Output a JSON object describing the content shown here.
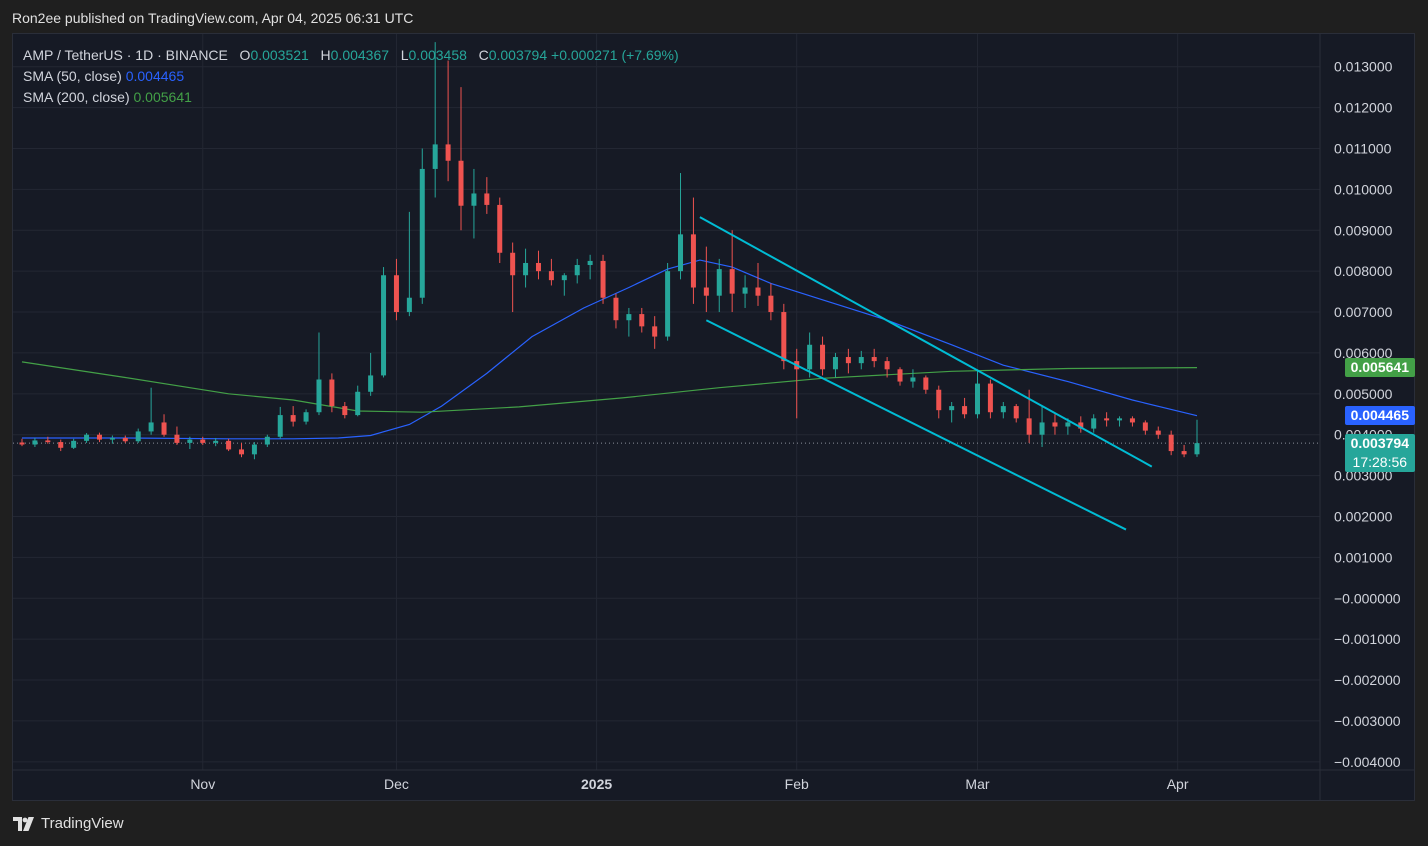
{
  "header": {
    "published": "Ron2ee published on TradingView.com, Apr 04, 2025 06:31 UTC"
  },
  "legend": {
    "symbol": "AMP / TetherUS · 1D · BINANCE",
    "o_label": "O",
    "o": "0.003521",
    "h_label": "H",
    "h": "0.004367",
    "l_label": "L",
    "l": "0.003458",
    "c_label": "C",
    "c": "0.003794",
    "change": "+0.000271 (+7.69%)",
    "sma50_label": "SMA (50, close)",
    "sma50": "0.004465",
    "sma200_label": "SMA (200, close)",
    "sma200": "0.005641"
  },
  "tags": {
    "sma200": "0.005641",
    "sma50": "0.004465",
    "price": "0.003794",
    "countdown": "17:28:56"
  },
  "colors": {
    "up": "#26a69a",
    "down": "#ef5350",
    "sma50": "#2962ff",
    "sma200": "#43a047",
    "trendline": "#00bcd4",
    "background": "#161a25",
    "grid": "#232733"
  },
  "footer": {
    "brand": "TradingView",
    "logo_icon": "tradingview-logo-icon"
  },
  "chart_data": {
    "type": "candlestick",
    "title": "AMP / TetherUS · 1D · BINANCE",
    "ylim": [
      -0.0042,
      0.0138
    ],
    "y_ticks": [
      "0.013000",
      "0.012000",
      "0.011000",
      "0.010000",
      "0.009000",
      "0.008000",
      "0.007000",
      "0.006000",
      "0.005000",
      "0.004000",
      "0.003000",
      "0.002000",
      "0.001000",
      "−0.000000",
      "−0.001000",
      "−0.002000",
      "−0.003000",
      "−0.004000"
    ],
    "x_ticks": [
      {
        "label": "Nov",
        "date": "2024-11-01"
      },
      {
        "label": "Dec",
        "date": "2024-12-01"
      },
      {
        "label": "2025",
        "date": "2025-01-01",
        "bold": true
      },
      {
        "label": "Feb",
        "date": "2025-02-01"
      },
      {
        "label": "Mar",
        "date": "2025-03-01"
      },
      {
        "label": "Apr",
        "date": "2025-04-01"
      }
    ],
    "x_start": "2024-10-04",
    "x_end": "2025-04-04",
    "series": [
      {
        "name": "SMA (50, close)",
        "color": "#2962ff",
        "points": [
          [
            "2024-10-04",
            0.00392
          ],
          [
            "2024-10-20",
            0.00392
          ],
          [
            "2024-11-05",
            0.0039
          ],
          [
            "2024-11-15",
            0.0039
          ],
          [
            "2024-11-22",
            0.00392
          ],
          [
            "2024-11-27",
            0.00398
          ],
          [
            "2024-12-03",
            0.00425
          ],
          [
            "2024-12-08",
            0.0047
          ],
          [
            "2024-12-15",
            0.0055
          ],
          [
            "2024-12-22",
            0.0064
          ],
          [
            "2024-12-30",
            0.0071
          ],
          [
            "2025-01-06",
            0.0076
          ],
          [
            "2025-01-12",
            0.00805
          ],
          [
            "2025-01-17",
            0.00827
          ],
          [
            "2025-01-22",
            0.0081
          ],
          [
            "2025-01-28",
            0.0077
          ],
          [
            "2025-02-05",
            0.0073
          ],
          [
            "2025-02-15",
            0.0068
          ],
          [
            "2025-02-25",
            0.0062
          ],
          [
            "2025-03-05",
            0.0057
          ],
          [
            "2025-03-15",
            0.0053
          ],
          [
            "2025-03-25",
            0.00485
          ],
          [
            "2025-04-04",
            0.004465
          ]
        ]
      },
      {
        "name": "SMA (200, close)",
        "color": "#43a047",
        "points": [
          [
            "2024-10-04",
            0.00578
          ],
          [
            "2024-10-20",
            0.0054
          ],
          [
            "2024-11-05",
            0.005
          ],
          [
            "2024-11-15",
            0.00485
          ],
          [
            "2024-11-25",
            0.00458
          ],
          [
            "2024-12-05",
            0.00455
          ],
          [
            "2024-12-20",
            0.00468
          ],
          [
            "2025-01-05",
            0.0049
          ],
          [
            "2025-01-20",
            0.00515
          ],
          [
            "2025-02-05",
            0.00538
          ],
          [
            "2025-02-25",
            0.00555
          ],
          [
            "2025-03-15",
            0.00562
          ],
          [
            "2025-04-04",
            0.005641
          ]
        ]
      }
    ],
    "candles": [
      [
        "2024-10-04",
        0.00381,
        0.0039,
        0.00372,
        0.00376
      ],
      [
        "2024-10-06",
        0.00376,
        0.00392,
        0.0037,
        0.00386
      ],
      [
        "2024-10-08",
        0.00386,
        0.00395,
        0.00378,
        0.00382
      ],
      [
        "2024-10-10",
        0.00382,
        0.00388,
        0.0036,
        0.00368
      ],
      [
        "2024-10-12",
        0.00368,
        0.0039,
        0.00365,
        0.00385
      ],
      [
        "2024-10-14",
        0.00385,
        0.00404,
        0.0038,
        0.004
      ],
      [
        "2024-10-16",
        0.004,
        0.00405,
        0.00382,
        0.00388
      ],
      [
        "2024-10-18",
        0.00388,
        0.00398,
        0.00378,
        0.00392
      ],
      [
        "2024-10-20",
        0.00392,
        0.00398,
        0.0038,
        0.00384
      ],
      [
        "2024-10-22",
        0.00384,
        0.00415,
        0.0038,
        0.00408
      ],
      [
        "2024-10-24",
        0.00408,
        0.00515,
        0.004,
        0.0043
      ],
      [
        "2024-10-26",
        0.0043,
        0.0045,
        0.00395,
        0.004
      ],
      [
        "2024-10-28",
        0.004,
        0.0042,
        0.00375,
        0.0038
      ],
      [
        "2024-10-30",
        0.0038,
        0.00395,
        0.00365,
        0.00388
      ],
      [
        "2024-11-01",
        0.00388,
        0.00395,
        0.00375,
        0.0038
      ],
      [
        "2024-11-03",
        0.0038,
        0.00392,
        0.00372,
        0.00385
      ],
      [
        "2024-11-05",
        0.00385,
        0.0039,
        0.0036,
        0.00364
      ],
      [
        "2024-11-07",
        0.00364,
        0.0038,
        0.00345,
        0.00352
      ],
      [
        "2024-11-09",
        0.00352,
        0.00382,
        0.0034,
        0.00376
      ],
      [
        "2024-11-11",
        0.00376,
        0.004,
        0.0037,
        0.00395
      ],
      [
        "2024-11-13",
        0.00395,
        0.00468,
        0.0039,
        0.00448
      ],
      [
        "2024-11-15",
        0.00448,
        0.0047,
        0.0042,
        0.00432
      ],
      [
        "2024-11-17",
        0.00432,
        0.00462,
        0.00425,
        0.00455
      ],
      [
        "2024-11-19",
        0.00455,
        0.0065,
        0.00448,
        0.00535
      ],
      [
        "2024-11-21",
        0.00535,
        0.0055,
        0.00455,
        0.0047
      ],
      [
        "2024-11-23",
        0.0047,
        0.0048,
        0.0044,
        0.00448
      ],
      [
        "2024-11-25",
        0.00448,
        0.0052,
        0.00445,
        0.00505
      ],
      [
        "2024-11-27",
        0.00505,
        0.006,
        0.00495,
        0.00545
      ],
      [
        "2024-11-29",
        0.00545,
        0.0081,
        0.0054,
        0.0079
      ],
      [
        "2024-12-01",
        0.0079,
        0.0083,
        0.0068,
        0.007
      ],
      [
        "2024-12-03",
        0.007,
        0.00945,
        0.0069,
        0.00735
      ],
      [
        "2024-12-05",
        0.00735,
        0.011,
        0.0072,
        0.0105
      ],
      [
        "2024-12-07",
        0.0105,
        0.0136,
        0.0098,
        0.0111
      ],
      [
        "2024-12-09",
        0.0111,
        0.01315,
        0.0102,
        0.0107
      ],
      [
        "2024-12-11",
        0.0107,
        0.0125,
        0.009,
        0.0096
      ],
      [
        "2024-12-13",
        0.0096,
        0.0105,
        0.0088,
        0.0099
      ],
      [
        "2024-12-15",
        0.0099,
        0.0103,
        0.0094,
        0.00962
      ],
      [
        "2024-12-17",
        0.00962,
        0.0098,
        0.0082,
        0.00845
      ],
      [
        "2024-12-19",
        0.00845,
        0.0087,
        0.007,
        0.0079
      ],
      [
        "2024-12-21",
        0.0079,
        0.00855,
        0.0076,
        0.0082
      ],
      [
        "2024-12-23",
        0.0082,
        0.0085,
        0.0078,
        0.008
      ],
      [
        "2024-12-25",
        0.008,
        0.0083,
        0.00765,
        0.00778
      ],
      [
        "2024-12-27",
        0.00778,
        0.00795,
        0.0074,
        0.0079
      ],
      [
        "2024-12-29",
        0.0079,
        0.0083,
        0.0077,
        0.00815
      ],
      [
        "2024-12-31",
        0.00815,
        0.0084,
        0.0078,
        0.00825
      ],
      [
        "2025-01-02",
        0.00825,
        0.0084,
        0.0072,
        0.00735
      ],
      [
        "2025-01-04",
        0.00735,
        0.00745,
        0.0066,
        0.0068
      ],
      [
        "2025-01-06",
        0.0068,
        0.0071,
        0.0064,
        0.00695
      ],
      [
        "2025-01-08",
        0.00695,
        0.0071,
        0.0065,
        0.00665
      ],
      [
        "2025-01-10",
        0.00665,
        0.0069,
        0.0061,
        0.0064
      ],
      [
        "2025-01-12",
        0.0064,
        0.0082,
        0.0063,
        0.008
      ],
      [
        "2025-01-14",
        0.008,
        0.0104,
        0.0078,
        0.0089
      ],
      [
        "2025-01-16",
        0.0089,
        0.0098,
        0.0072,
        0.0076
      ],
      [
        "2025-01-18",
        0.0076,
        0.0086,
        0.007,
        0.0074
      ],
      [
        "2025-01-20",
        0.0074,
        0.0083,
        0.007,
        0.00805
      ],
      [
        "2025-01-22",
        0.00805,
        0.009,
        0.007,
        0.00745
      ],
      [
        "2025-01-24",
        0.00745,
        0.0079,
        0.0071,
        0.0076
      ],
      [
        "2025-01-26",
        0.0076,
        0.0082,
        0.00715,
        0.0074
      ],
      [
        "2025-01-28",
        0.0074,
        0.0077,
        0.0068,
        0.007
      ],
      [
        "2025-01-30",
        0.007,
        0.0072,
        0.0056,
        0.0058
      ],
      [
        "2025-02-01",
        0.0058,
        0.0061,
        0.0044,
        0.0056
      ],
      [
        "2025-02-03",
        0.0056,
        0.0065,
        0.0054,
        0.0062
      ],
      [
        "2025-02-05",
        0.0062,
        0.0064,
        0.00545,
        0.0056
      ],
      [
        "2025-02-07",
        0.0056,
        0.006,
        0.0054,
        0.0059
      ],
      [
        "2025-02-09",
        0.0059,
        0.0061,
        0.0055,
        0.00575
      ],
      [
        "2025-02-11",
        0.00575,
        0.00605,
        0.0056,
        0.0059
      ],
      [
        "2025-02-13",
        0.0059,
        0.0061,
        0.00565,
        0.0058
      ],
      [
        "2025-02-15",
        0.0058,
        0.0059,
        0.0054,
        0.0056
      ],
      [
        "2025-02-17",
        0.0056,
        0.00565,
        0.0052,
        0.0053
      ],
      [
        "2025-02-19",
        0.0053,
        0.0056,
        0.00515,
        0.0054
      ],
      [
        "2025-02-21",
        0.0054,
        0.00545,
        0.005,
        0.0051
      ],
      [
        "2025-02-23",
        0.0051,
        0.0052,
        0.0044,
        0.0046
      ],
      [
        "2025-02-25",
        0.0046,
        0.0048,
        0.0043,
        0.0047
      ],
      [
        "2025-02-27",
        0.0047,
        0.0049,
        0.0044,
        0.0045
      ],
      [
        "2025-03-01",
        0.0045,
        0.0056,
        0.0044,
        0.00525
      ],
      [
        "2025-03-03",
        0.00525,
        0.00535,
        0.0044,
        0.00455
      ],
      [
        "2025-03-05",
        0.00455,
        0.0048,
        0.0044,
        0.0047
      ],
      [
        "2025-03-07",
        0.0047,
        0.00475,
        0.0043,
        0.0044
      ],
      [
        "2025-03-09",
        0.0044,
        0.0051,
        0.0038,
        0.004
      ],
      [
        "2025-03-11",
        0.004,
        0.0047,
        0.0037,
        0.0043
      ],
      [
        "2025-03-13",
        0.0043,
        0.0045,
        0.004,
        0.0042
      ],
      [
        "2025-03-15",
        0.0042,
        0.0044,
        0.004,
        0.0043
      ],
      [
        "2025-03-17",
        0.0043,
        0.00445,
        0.00405,
        0.00415
      ],
      [
        "2025-03-19",
        0.00415,
        0.0045,
        0.00405,
        0.0044
      ],
      [
        "2025-03-21",
        0.0044,
        0.00455,
        0.0042,
        0.00435
      ],
      [
        "2025-03-23",
        0.00435,
        0.00445,
        0.0042,
        0.0044
      ],
      [
        "2025-03-25",
        0.0044,
        0.00445,
        0.0042,
        0.0043
      ],
      [
        "2025-03-27",
        0.0043,
        0.00435,
        0.004,
        0.0041
      ],
      [
        "2025-03-29",
        0.0041,
        0.0042,
        0.0039,
        0.004
      ],
      [
        "2025-03-31",
        0.004,
        0.0041,
        0.0035,
        0.0036
      ],
      [
        "2025-04-02",
        0.0036,
        0.00375,
        0.00345,
        0.00352
      ],
      [
        "2025-04-04",
        0.003521,
        0.004367,
        0.003458,
        0.003794
      ]
    ],
    "trendlines": [
      {
        "from": [
          "2025-01-17",
          0.00932
        ],
        "to": [
          "2025-03-28",
          0.00322
        ]
      },
      {
        "from": [
          "2025-01-18",
          0.0068
        ],
        "to": [
          "2025-03-24",
          0.00168
        ]
      }
    ],
    "last_price_line": 0.003794
  }
}
